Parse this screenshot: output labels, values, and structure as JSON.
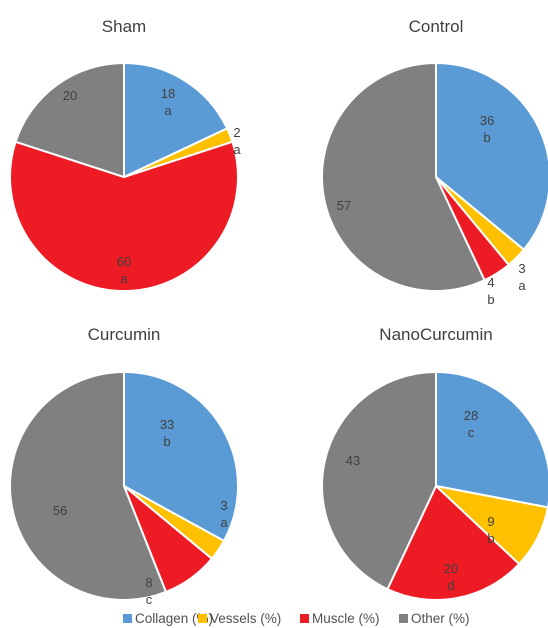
{
  "legend": [
    {
      "label": "Collagen (%)",
      "color": "#5B9BD5"
    },
    {
      "label": "Vessels (%)",
      "color": "#FFC000"
    },
    {
      "label": "Muscle (%)",
      "color": "#ED1C24"
    },
    {
      "label": "Other (%)",
      "color": "#808080"
    }
  ],
  "chart_data": [
    {
      "type": "pie",
      "title": "Sham",
      "categories": [
        "Collagen (%)",
        "Vessels (%)",
        "Muscle (%)",
        "Other (%)"
      ],
      "values": [
        18,
        2,
        60,
        20
      ],
      "letters": [
        "a",
        "a",
        "a",
        ""
      ]
    },
    {
      "type": "pie",
      "title": "Control",
      "categories": [
        "Collagen (%)",
        "Vessels (%)",
        "Muscle (%)",
        "Other (%)"
      ],
      "values": [
        36,
        3,
        4,
        57
      ],
      "letters": [
        "b",
        "a",
        "b",
        ""
      ]
    },
    {
      "type": "pie",
      "title": "Curcumin",
      "categories": [
        "Collagen (%)",
        "Vessels (%)",
        "Muscle (%)",
        "Other (%)"
      ],
      "values": [
        33,
        3,
        8,
        56
      ],
      "letters": [
        "b",
        "a",
        "c",
        ""
      ]
    },
    {
      "type": "pie",
      "title": "NanoCurcumin",
      "categories": [
        "Collagen (%)",
        "Vessels (%)",
        "Muscle (%)",
        "Other (%)"
      ],
      "values": [
        28,
        9,
        20,
        43
      ],
      "letters": [
        "c",
        "b",
        "d",
        ""
      ]
    }
  ]
}
